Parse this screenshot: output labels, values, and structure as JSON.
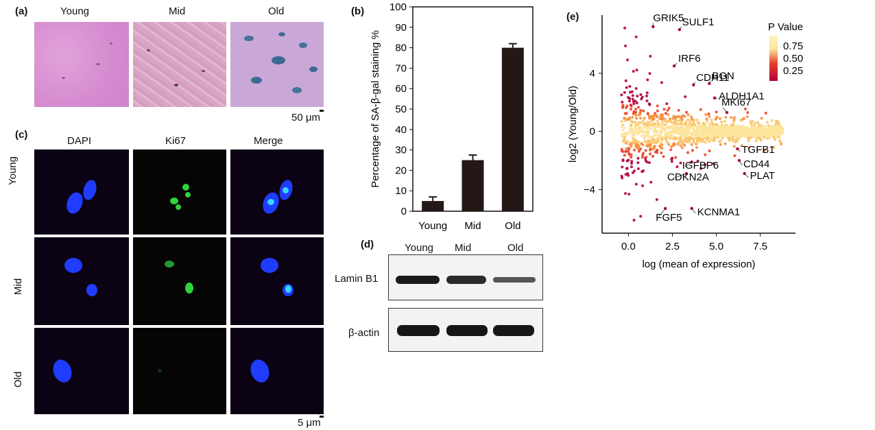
{
  "panel_labels": {
    "a": "(a)",
    "b": "(b)",
    "c": "(c)",
    "d": "(d)",
    "e": "(e)"
  },
  "panel_a": {
    "columns": [
      "Young",
      "Mid",
      "Old"
    ],
    "scale_bar": "50 μm",
    "colors": {
      "young": "#d79ad2",
      "mid": "#d8a7c6",
      "old": "#c8a7d6",
      "stain": "#3e6b8e"
    }
  },
  "panel_c": {
    "columns": [
      "DAPI",
      "Ki67",
      "Merge"
    ],
    "rows": [
      "Young",
      "Mid",
      "Old"
    ],
    "scale_bar": "5 μm",
    "colors": {
      "dapi": "#1f3cff",
      "ki67": "#2fd23a",
      "background": "#0b0214"
    }
  },
  "panel_d": {
    "columns": [
      "Young",
      "Mid",
      "Old"
    ],
    "rows": [
      "Lamin B1",
      "β-actin"
    ]
  },
  "chart_data": [
    {
      "type": "bar",
      "categories": [
        "Young",
        "Mid",
        "Old"
      ],
      "values": [
        5,
        25,
        80
      ],
      "errors": [
        2,
        2.5,
        2
      ],
      "ylabel": "Percentage of SA-β-gal staining %",
      "ylim": [
        0,
        100
      ],
      "yticks": [
        0,
        10,
        20,
        30,
        40,
        50,
        60,
        70,
        80,
        90,
        100
      ],
      "bar_color": "#231815"
    },
    {
      "type": "scatter",
      "xlabel": "log (mean of expression)",
      "ylabel": "log2 (Young/Old)",
      "xticks": [
        "0.0",
        "2.5",
        "5.0",
        "7.5"
      ],
      "yticks": [
        "4",
        "0",
        "−4"
      ],
      "xlim": [
        -1.5,
        9.5
      ],
      "ylim": [
        -7,
        8
      ],
      "legend": {
        "title": "P Value",
        "labels": [
          "0.75",
          "0.50",
          "0.25"
        ],
        "placement": "top-right"
      },
      "colors": {
        "low_p": "#b3003a",
        "mid_p": "#e8432a",
        "high_p": "#fde39a"
      },
      "genes": [
        {
          "name": "GRIK5",
          "x": 1.4,
          "y": 7.2
        },
        {
          "name": "SULF1",
          "x": 2.9,
          "y": 7.0
        },
        {
          "name": "IRF6",
          "x": 2.6,
          "y": 4.5
        },
        {
          "name": "CDH11",
          "x": 3.7,
          "y": 3.2
        },
        {
          "name": "BGN",
          "x": 4.6,
          "y": 3.3
        },
        {
          "name": "ALDH1A1",
          "x": 4.9,
          "y": 2.3
        },
        {
          "name": "MKI67",
          "x": 5.6,
          "y": 1.3
        },
        {
          "name": "TGFB1",
          "x": 6.2,
          "y": -1.2
        },
        {
          "name": "CD44",
          "x": 6.3,
          "y": -2.0
        },
        {
          "name": "IGFBP6",
          "x": 3.6,
          "y": -2.1
        },
        {
          "name": "PLAT",
          "x": 6.6,
          "y": -2.9
        },
        {
          "name": "CDKN2A",
          "x": 3.3,
          "y": -2.9
        },
        {
          "name": "FGF5",
          "x": 2.1,
          "y": -5.3
        },
        {
          "name": "KCNMA1",
          "x": 3.6,
          "y": -5.3
        }
      ]
    }
  ]
}
